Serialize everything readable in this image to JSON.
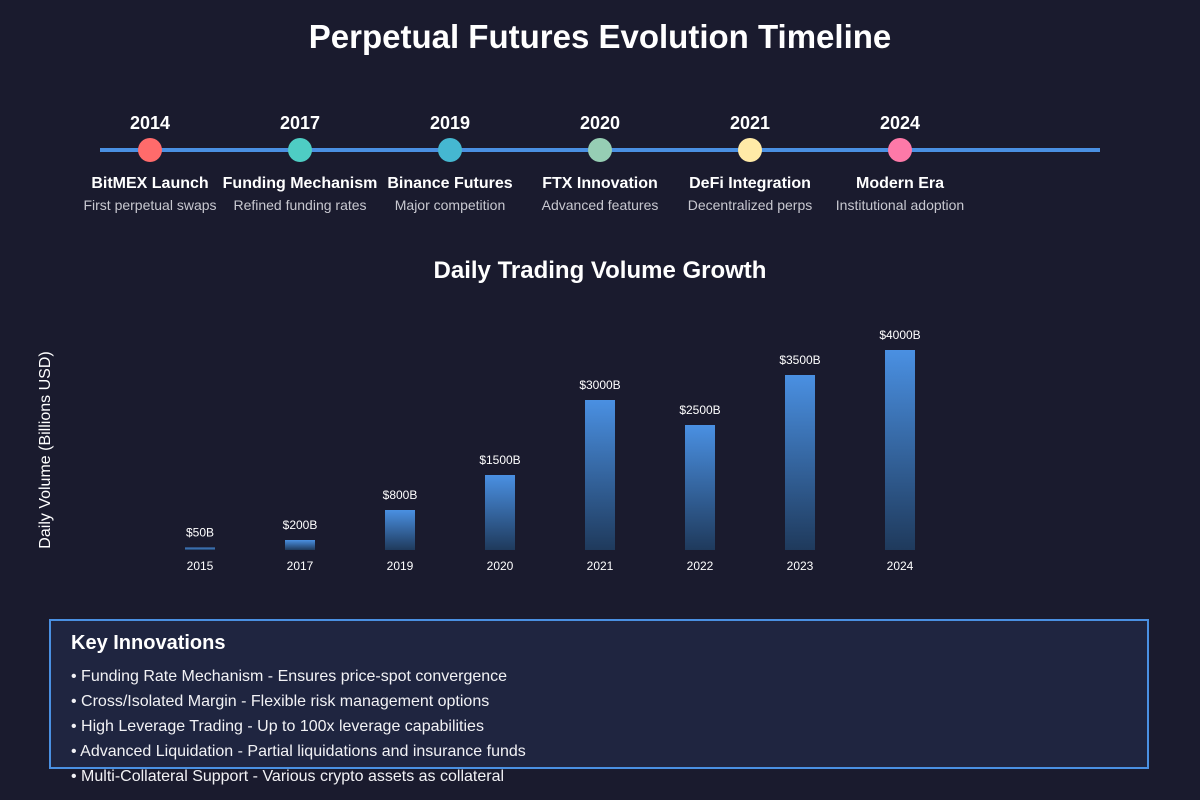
{
  "page_title": "Perpetual Futures Evolution Timeline",
  "timeline": {
    "milestones": [
      {
        "year": "2014",
        "name": "BitMEX Launch",
        "description": "First perpetual swaps",
        "color": "#ff6b6b"
      },
      {
        "year": "2017",
        "name": "Funding Mechanism",
        "description": "Refined funding rates",
        "color": "#4ecdc4"
      },
      {
        "year": "2019",
        "name": "Binance Futures",
        "description": "Major competition",
        "color": "#45b7d1"
      },
      {
        "year": "2020",
        "name": "FTX Innovation",
        "description": "Advanced features",
        "color": "#96ceb4"
      },
      {
        "year": "2021",
        "name": "DeFi Integration",
        "description": "Decentralized perps",
        "color": "#ffeaa7"
      },
      {
        "year": "2024",
        "name": "Modern Era",
        "description": "Institutional adoption",
        "color": "#fd79a8"
      }
    ],
    "line_color": "#4a90e2"
  },
  "chart_data": {
    "type": "bar",
    "title": "Daily Trading Volume Growth",
    "xlabel": "",
    "ylabel": "Daily Volume (Billions USD)",
    "categories": [
      "2015",
      "2017",
      "2019",
      "2020",
      "2021",
      "2022",
      "2023",
      "2024"
    ],
    "values": [
      50,
      200,
      800,
      1500,
      3000,
      2500,
      3500,
      4000
    ],
    "data_labels": [
      "$50B",
      "$200B",
      "$800B",
      "$1500B",
      "$3000B",
      "$2500B",
      "$3500B",
      "$4000B"
    ],
    "ylim": [
      0,
      4000
    ],
    "grid": false,
    "bar_color_top": "#4a90e2",
    "bar_color_bottom": "#1f3a5c"
  },
  "innovations": {
    "heading": "Key Innovations",
    "items": [
      "• Funding Rate Mechanism - Ensures price-spot convergence",
      "• Cross/Isolated Margin - Flexible risk management options",
      "• High Leverage Trading - Up to 100x leverage capabilities",
      "• Advanced Liquidation - Partial liquidations and insurance funds",
      "• Multi-Collateral Support - Various crypto assets as collateral"
    ],
    "border_color": "#4a90e2"
  }
}
